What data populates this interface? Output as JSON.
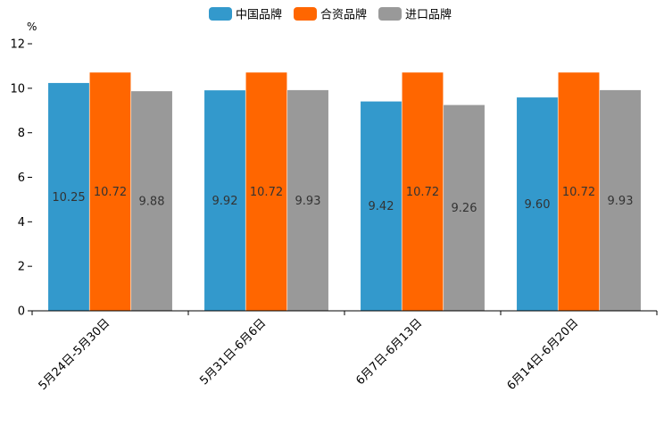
{
  "chart_data": {
    "type": "bar",
    "ylabel": "%",
    "ylim": [
      0,
      12
    ],
    "yticks": [
      "0",
      "2",
      "4",
      "6",
      "8",
      "10",
      "12"
    ],
    "legend_position": "top-center",
    "grid": false,
    "categories": [
      "5月24日-5月30日",
      "5月31日-6月6日",
      "6月7日-6月13日",
      "6月14日-6月20日"
    ],
    "series": [
      {
        "name": "中国品牌",
        "color": "#3399cc",
        "values": [
          10.25,
          9.92,
          9.42,
          9.6
        ],
        "labels": [
          "10.25",
          "9.92",
          "9.42",
          "9.60"
        ]
      },
      {
        "name": "合资品牌",
        "color": "#ff6600",
        "values": [
          10.72,
          10.72,
          10.72,
          10.72
        ],
        "labels": [
          "10.72",
          "10.72",
          "10.72",
          "10.72"
        ]
      },
      {
        "name": "进口品牌",
        "color": "#999999",
        "values": [
          9.88,
          9.93,
          9.26,
          9.93
        ],
        "labels": [
          "9.88",
          "9.93",
          "9.26",
          "9.93"
        ]
      }
    ]
  }
}
